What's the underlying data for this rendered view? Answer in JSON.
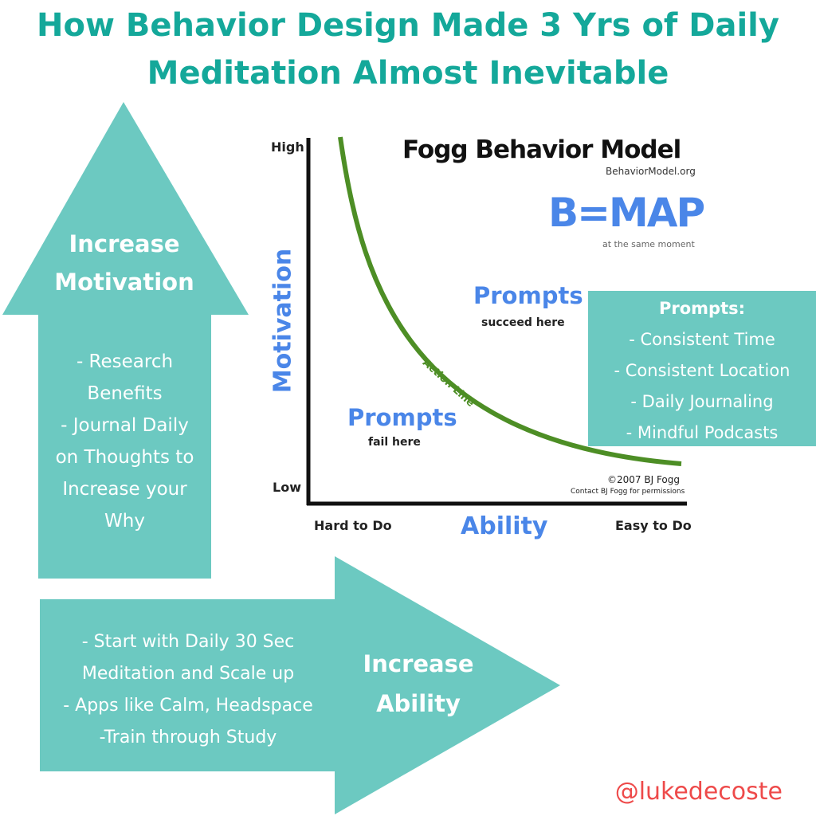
{
  "title": {
    "line1": "How Behavior Design Made 3 Yrs of Daily",
    "line2": "Meditation Almost Inevitable"
  },
  "motivation_arrow": {
    "heading_line1": "Increase",
    "heading_line2": "Motivation",
    "items": [
      "- Research",
      "Benefits",
      "- Journal Daily",
      "on Thoughts to",
      "Increase your",
      "Why"
    ]
  },
  "ability_arrow": {
    "heading_line1": "Increase",
    "heading_line2": "Ability",
    "items": [
      "- Start with Daily 30 Sec",
      "Meditation and Scale up",
      "- Apps like Calm, Headspace",
      "-Train through Study"
    ]
  },
  "prompts_box": {
    "heading": "Prompts:",
    "items": [
      "- Consistent Time",
      "- Consistent Location",
      "- Daily Journaling",
      "- Mindful Podcasts"
    ]
  },
  "fogg_model": {
    "title": "Fogg Behavior Model",
    "website": "BehaviorModel.org",
    "formula": "B=MAP",
    "formula_note": "at the same moment",
    "y_axis_label": "Motivation",
    "y_high": "High",
    "y_low": "Low",
    "x_axis_label": "Ability",
    "x_left": "Hard to Do",
    "x_right": "Easy to Do",
    "curve_label": "Action Line",
    "prompts_succeed_title": "Prompts",
    "prompts_succeed_sub": "succeed here",
    "prompts_fail_title": "Prompts",
    "prompts_fail_sub": "fail here",
    "copyright": "©2007 BJ Fogg",
    "permissions": "Contact BJ Fogg for permissions",
    "colors": {
      "curve": "#4d8e25",
      "label_blue": "#4a86e8"
    }
  },
  "handle": "@lukedecoste",
  "colors": {
    "teal": "#6cc9c1",
    "title": "#14a89a",
    "handle": "#ee4a4a"
  }
}
